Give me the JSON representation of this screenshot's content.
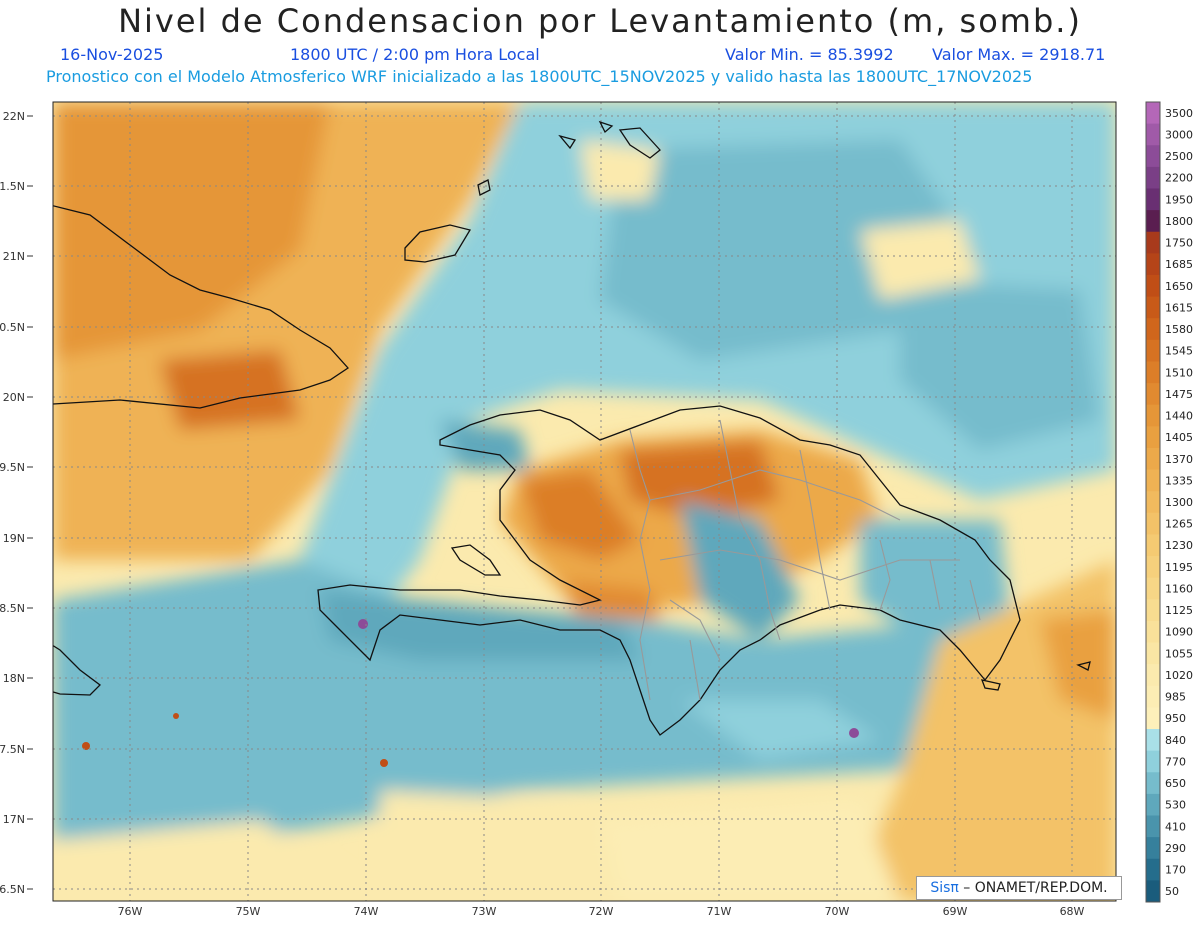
{
  "header": {
    "title": "Nivel de Condensacion por Levantamiento (m, somb.)",
    "date": "16-Nov-2025",
    "time": "1800 UTC / 2:00 pm Hora Local",
    "value_min": "Valor Min. = 85.3992",
    "value_max": "Valor Max. = 2918.71",
    "model_info": "Pronostico con el Modelo Atmosferico WRF inicializado a las 1800UTC_15NOV2025 y valido hasta las  1800UTC_17NOV2025"
  },
  "map": {
    "lat_labels": [
      "22N",
      "21.5N",
      "21N",
      "20.5N",
      "20N",
      "19.5N",
      "19N",
      "18.5N",
      "18N",
      "17.5N",
      "17N",
      "16.5N"
    ],
    "lon_labels": [
      "76W",
      "75W",
      "74W",
      "73W",
      "72W",
      "71W",
      "70W",
      "69W",
      "68W"
    ],
    "lat_values": [
      22,
      21.5,
      21,
      20.5,
      20,
      19.5,
      19,
      18.5,
      18,
      17.5,
      17,
      16.5
    ],
    "lon_values": [
      -76,
      -75,
      -74,
      -73,
      -72,
      -71,
      -70,
      -69,
      -68
    ]
  },
  "legend": {
    "levels": [
      "3500",
      "3000",
      "2500",
      "2200",
      "1950",
      "1800",
      "1750",
      "1685",
      "1650",
      "1615",
      "1580",
      "1545",
      "1510",
      "1475",
      "1440",
      "1405",
      "1370",
      "1335",
      "1300",
      "1265",
      "1230",
      "1195",
      "1160",
      "1125",
      "1090",
      "1055",
      "1020",
      "985",
      "950",
      "840",
      "770",
      "650",
      "530",
      "410",
      "290",
      "170",
      "50"
    ],
    "colors": [
      "#b467b8",
      "#a05aa8",
      "#8c4c98",
      "#7a3f86",
      "#692f72",
      "#5a1e50",
      "#a83a1c",
      "#b54418",
      "#c04e16",
      "#c85a18",
      "#d0661c",
      "#d67222",
      "#dc7e28",
      "#e18a30",
      "#e59638",
      "#e9a040",
      "#eca94a",
      "#efb254",
      "#f1ba5e",
      "#f3c268",
      "#f5ca72",
      "#f6d07c",
      "#f7d686",
      "#f8dc90",
      "#f9e19a",
      "#fae6a4",
      "#fbeaae",
      "#fcedb4",
      "#fdf0ba",
      "#a9e0e8",
      "#8fd0dc",
      "#76bccc",
      "#5fa8bc",
      "#4a94ac",
      "#36809c",
      "#256d8c",
      "#1a5c7c"
    ]
  },
  "credit": {
    "sis": "Sisπ",
    "org": " – ONAMET/REP.DOM."
  }
}
